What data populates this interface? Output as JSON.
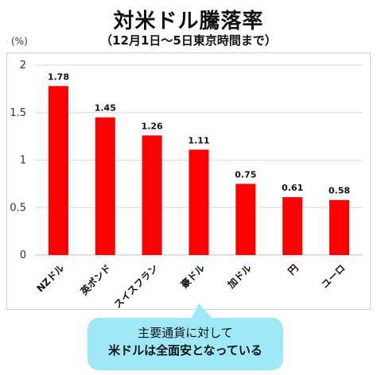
{
  "title": "対米ドル騰落率",
  "subtitle": "（12月1日〜5日東京時間まで）",
  "callout": {
    "line1": "主要通貨に対して",
    "line2": "米ドルは全面安となっている"
  },
  "colors": {
    "bar": "#ff0000",
    "grid": "#d9d9d9",
    "callout": "#9fe8f7"
  },
  "chart_data": {
    "type": "bar",
    "ylabel": "(%)",
    "ylim": [
      0,
      2
    ],
    "yticks": [
      "0",
      "0.5",
      "1",
      "1.5",
      "2"
    ],
    "grid": true,
    "categories": [
      "NZドル",
      "英ポンド",
      "スイスフラン",
      "豪ドル",
      "加ドル",
      "円",
      "ユーロ"
    ],
    "values": [
      1.78,
      1.45,
      1.26,
      1.11,
      0.75,
      0.61,
      0.58
    ],
    "value_labels": [
      "1.78",
      "1.45",
      "1.26",
      "1.11",
      "0.75",
      "0.61",
      "0.58"
    ]
  }
}
